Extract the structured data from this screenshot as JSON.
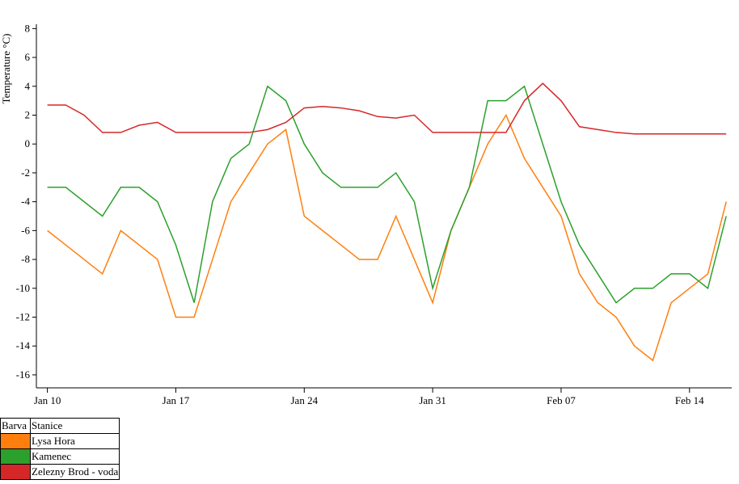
{
  "chart_data": {
    "type": "line",
    "y_label": "Temperature °C)",
    "x": [
      "Jan 10",
      "Jan 11",
      "Jan 12",
      "Jan 13",
      "Jan 14",
      "Jan 15",
      "Jan 16",
      "Jan 17",
      "Jan 18",
      "Jan 19",
      "Jan 20",
      "Jan 21",
      "Jan 22",
      "Jan 23",
      "Jan 24",
      "Jan 25",
      "Jan 26",
      "Jan 27",
      "Jan 28",
      "Jan 29",
      "Jan 30",
      "Jan 31",
      "Feb 01",
      "Feb 02",
      "Feb 03",
      "Feb 04",
      "Feb 05",
      "Feb 06",
      "Feb 07",
      "Feb 08",
      "Feb 09",
      "Feb 10",
      "Feb 11",
      "Feb 12",
      "Feb 13",
      "Feb 14",
      "Feb 15",
      "Feb 16"
    ],
    "xticks": [
      "Jan 10",
      "Jan 17",
      "Jan 24",
      "Jan 31",
      "Feb 07",
      "Feb 14"
    ],
    "ylim": [
      -16.9,
      8.3
    ],
    "yticks": [
      8,
      6,
      4,
      2,
      0,
      -2,
      -4,
      -6,
      -8,
      -10,
      -12,
      -14,
      -16
    ],
    "legend_header": [
      "Barva",
      "Stanice"
    ],
    "series": [
      {
        "name": "Lysa Hora",
        "color": "#ff7f0e",
        "values": [
          -6,
          -7,
          -8,
          -9,
          -6,
          -7,
          -8,
          -12,
          -12,
          -8,
          -4,
          -2,
          0,
          1,
          -5,
          -6,
          -7,
          -8,
          -8,
          -5,
          -8,
          -11,
          -6,
          -3,
          0,
          2,
          -1,
          -3,
          -5,
          -9,
          -11,
          -12,
          -14,
          -15,
          -11,
          -10,
          -9,
          -4
        ]
      },
      {
        "name": "Kamenec",
        "color": "#2ca02c",
        "values": [
          -3,
          -3,
          -4,
          -5,
          -3,
          -3,
          -4,
          -7,
          -11,
          -4,
          -1,
          0,
          4,
          3,
          0,
          -2,
          -3,
          -3,
          -3,
          -2,
          -4,
          -10,
          -6,
          -3,
          3,
          3,
          4,
          0,
          -4,
          -7,
          -9,
          -11,
          -10,
          -10,
          -9,
          -9,
          -10,
          -5
        ]
      },
      {
        "name": "Zelezny Brod - voda",
        "color": "#d62728",
        "values": [
          2.7,
          2.7,
          2,
          0.8,
          0.8,
          1.3,
          1.5,
          0.8,
          0.8,
          0.8,
          0.8,
          0.8,
          1,
          1.5,
          2.5,
          2.6,
          2.5,
          2.3,
          1.9,
          1.8,
          2,
          0.8,
          0.8,
          0.8,
          0.8,
          0.8,
          3,
          4.2,
          3,
          1.2,
          1,
          0.8,
          0.7,
          0.7,
          0.7,
          0.7,
          0.7,
          0.7
        ]
      }
    ]
  }
}
